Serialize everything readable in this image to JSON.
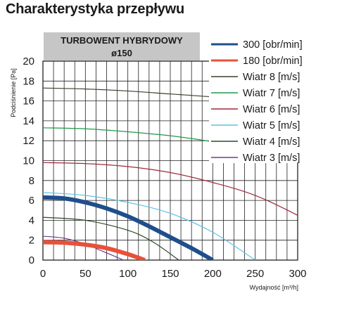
{
  "page": {
    "title": "Charakterystyka przepływu"
  },
  "chart_data": {
    "type": "line",
    "title_box": {
      "line1": "TURBOWENT HYBRYDOWY",
      "line2": "ø150"
    },
    "xlabel": "Wydajność [m³/h]",
    "ylabel": "Podciśnienie [Pa]",
    "xlim": [
      0,
      300
    ],
    "ylim": [
      0,
      20
    ],
    "x_ticks": [
      0,
      50,
      100,
      150,
      200,
      250,
      300
    ],
    "y_ticks": [
      0,
      2,
      4,
      6,
      8,
      10,
      12,
      14,
      16,
      18,
      20
    ],
    "grid": true,
    "legend_position": "right",
    "series": [
      {
        "name": "300 [obr/min]",
        "color": "#1f4e8c",
        "width": 6,
        "x": [
          0,
          25,
          50,
          75,
          100,
          125,
          150,
          175,
          200
        ],
        "y": [
          6.3,
          6.2,
          5.8,
          5.2,
          4.4,
          3.4,
          2.3,
          1.2,
          0
        ]
      },
      {
        "name": "180 [obr/min]",
        "color": "#e8503a",
        "width": 6,
        "x": [
          0,
          25,
          50,
          75,
          100,
          120
        ],
        "y": [
          1.8,
          1.75,
          1.55,
          1.2,
          0.6,
          0
        ]
      },
      {
        "name": "Wiatr  8 [m/s]",
        "color": "#3f3f30",
        "width": 1.2,
        "x": [
          0,
          50,
          100,
          150,
          200,
          250,
          300
        ],
        "y": [
          17.3,
          17.2,
          17.0,
          16.7,
          16.4,
          16.0,
          15.5
        ]
      },
      {
        "name": "Wiatr  7 [m/s]",
        "color": "#1f9a4a",
        "width": 1.2,
        "x": [
          0,
          50,
          100,
          150,
          200,
          250,
          300
        ],
        "y": [
          13.3,
          13.2,
          12.9,
          12.5,
          11.9,
          11.1,
          10.2
        ]
      },
      {
        "name": "Wiatr  6 [m/s]",
        "color": "#9e2a3a",
        "width": 1.2,
        "x": [
          0,
          50,
          100,
          150,
          200,
          250,
          300,
          325
        ],
        "y": [
          9.8,
          9.7,
          9.4,
          8.8,
          7.8,
          6.5,
          4.5,
          3.2
        ]
      },
      {
        "name": "Wiatr  5 [m/s]",
        "color": "#5bc2e7",
        "width": 1.2,
        "x": [
          0,
          50,
          100,
          150,
          200,
          250
        ],
        "y": [
          6.8,
          6.5,
          5.8,
          4.7,
          2.8,
          0
        ]
      },
      {
        "name": "Wiatr  4 [m/s]",
        "color": "#2d4a2a",
        "width": 1.2,
        "x": [
          0,
          50,
          100,
          130,
          160
        ],
        "y": [
          4.3,
          4.0,
          3.0,
          1.8,
          0
        ]
      },
      {
        "name": "Wiatr  3 [m/s]",
        "color": "#6a3d8f",
        "width": 1.2,
        "x": [
          0,
          25,
          50,
          70,
          95
        ],
        "y": [
          2.4,
          2.2,
          1.6,
          0.9,
          0
        ]
      }
    ]
  }
}
